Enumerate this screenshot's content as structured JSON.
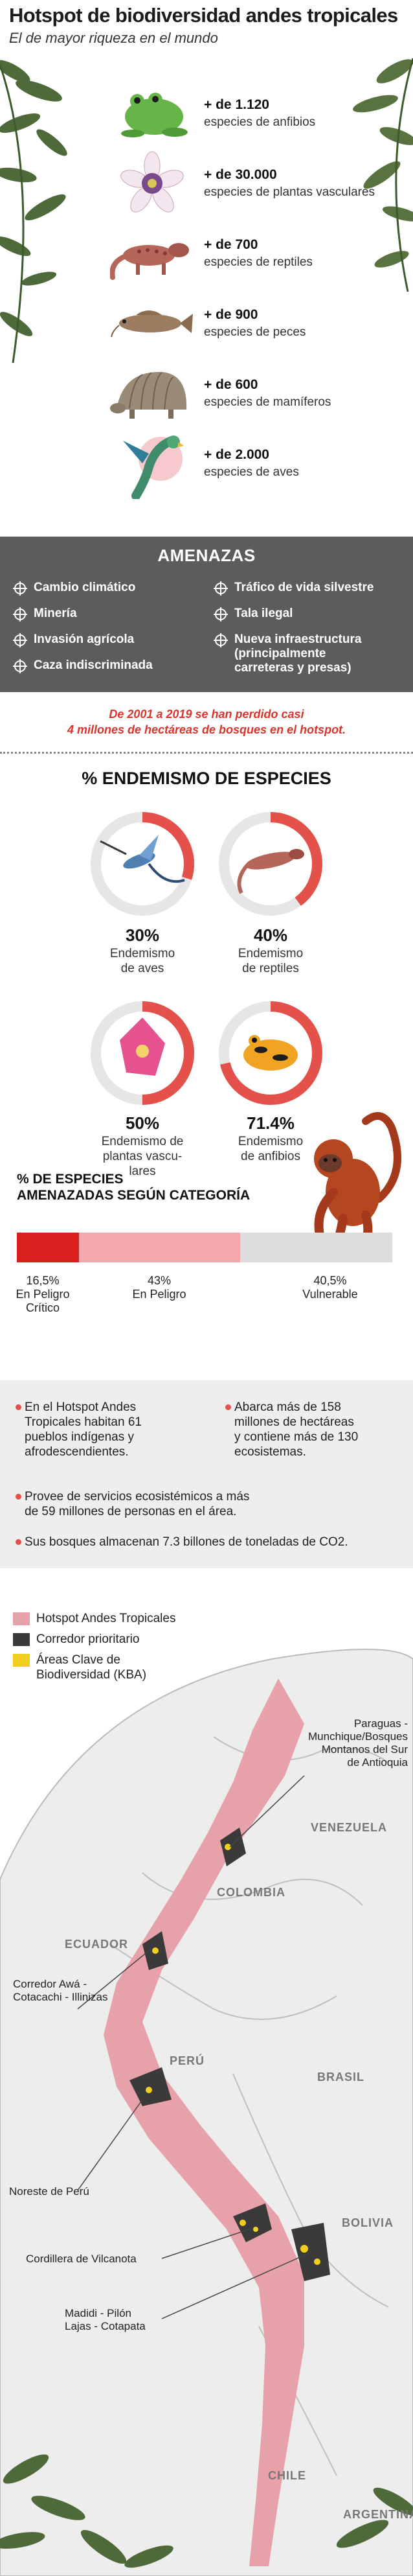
{
  "header": {
    "title": "Hotspot de biodiversidad andes tropicales",
    "subtitle": "El de mayor riqueza en el mundo"
  },
  "species": [
    {
      "count": "+ de 1.120",
      "label": "especies de anfibios",
      "icon": "frog-icon"
    },
    {
      "count": "+ de 30.000",
      "label": "especies de plantas vasculares",
      "icon": "flower-icon"
    },
    {
      "count": "+ de 700",
      "label": "especies de reptiles",
      "icon": "lizard-icon"
    },
    {
      "count": "+ de 900",
      "label": "especies de peces",
      "icon": "fish-icon"
    },
    {
      "count": "+ de 600",
      "label": "especies de mamíferos",
      "icon": "armadillo-icon"
    },
    {
      "count": "+ de 2.000",
      "label": "especies de aves",
      "icon": "parrot-icon"
    }
  ],
  "threats": {
    "title": "AMENAZAS",
    "left": [
      "Cambio climático",
      "Minería",
      "Invasión agrícola",
      "Caza indiscriminada"
    ],
    "right": [
      "Tráfico de vida silvestre",
      "Tala ilegal",
      "Nueva infraestructura",
      "(principalmente",
      "carreteras y presas)"
    ]
  },
  "loss": {
    "line1": "De 2001 a 2019 se han perdido casi",
    "line2": "4 millones de hectáreas de bosques en el hotspot."
  },
  "endemism": {
    "title": "% ENDEMISMO DE ESPECIES",
    "items": [
      {
        "value": 30,
        "pct": "30%",
        "label1": "Endemismo",
        "label2": "de aves",
        "label3": "",
        "icon": "hummingbird-icon"
      },
      {
        "value": 40,
        "pct": "40%",
        "label1": "Endemismo",
        "label2": "de reptiles",
        "label3": "",
        "icon": "lizard-icon"
      },
      {
        "value": 50,
        "pct": "50%",
        "label1": "Endemismo de",
        "label2": "plantas vascu-",
        "label3": "lares",
        "icon": "flower-icon"
      },
      {
        "value": 71.4,
        "pct": "71.4%",
        "label1": "Endemismo",
        "label2": "de anfibios",
        "label3": "",
        "icon": "frog-icon"
      }
    ],
    "colors": {
      "track": "#e6e6e6",
      "fill": "#e4514b"
    }
  },
  "categories": {
    "title1": "% DE ESPECIES",
    "title2": "AMENAZADAS SEGÚN CATEGORÍA",
    "items": [
      {
        "value": 16.5,
        "pct": "16,5%",
        "name1": "En Peligro",
        "name2": "Crítico",
        "color": "#d8201c"
      },
      {
        "value": 43,
        "pct": "43%",
        "name1": "En Peligro",
        "name2": "",
        "color": "#f3a8ab"
      },
      {
        "value": 40.5,
        "pct": "40,5%",
        "name1": "Vulnerable",
        "name2": "",
        "color": "#dddddd"
      }
    ]
  },
  "facts": [
    {
      "lines": [
        "En el Hotspot Andes",
        "Tropicales habitan 61",
        "pueblos indígenas y",
        "afrodescendientes."
      ]
    },
    {
      "lines": [
        "Abarca más de 158",
        "millones de hectáreas",
        "y contiene más de 130",
        "ecosistemas."
      ]
    },
    {
      "lines": [
        "Provee de servicios ecosistémicos a más",
        "de 59 millones de personas en el área."
      ]
    },
    {
      "lines": [
        "Sus bosques almacenan 7.3 billones de toneladas de CO2."
      ]
    }
  ],
  "legend": [
    {
      "label": "Hotspot Andes Tropicales",
      "color": "#e7a1a8"
    },
    {
      "label": "Corredor prioritario",
      "color": "#3a3a3a"
    },
    {
      "label": "Áreas Clave de",
      "label2": "Biodiversidad (KBA)",
      "color": "#f2cf1f"
    }
  ],
  "map": {
    "countries": [
      "VENEZUELA",
      "COLOMBIA",
      "ECUADOR",
      "PERÚ",
      "BRASIL",
      "BOLIVIA",
      "CHILE",
      "ARGENTINA"
    ],
    "labels": [
      {
        "lines": [
          "Paraguas -",
          "Munchique/Bosques",
          "Montanos del Sur",
          "de Antioquia"
        ]
      },
      {
        "lines": [
          "Corredor Awá -",
          "Cotacachi - Illinizas"
        ]
      },
      {
        "lines": [
          "Noreste de Perú"
        ]
      },
      {
        "lines": [
          "Cordillera de Vilcanota"
        ]
      },
      {
        "lines": [
          "Madidi - Pilón",
          "Lajas - Cotapata"
        ]
      }
    ]
  }
}
